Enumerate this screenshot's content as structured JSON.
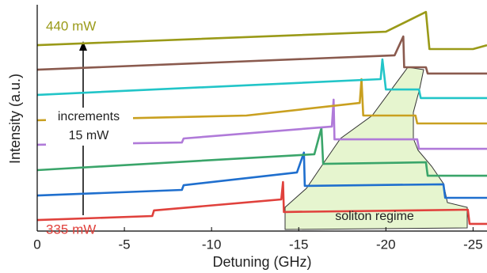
{
  "chart_data": {
    "type": "line",
    "xlabel": "Detuning (GHz)",
    "ylabel": "Intensity (a.u.)",
    "xlim": [
      0,
      -25.8
    ],
    "xticks": [
      0,
      -5,
      -10,
      -15,
      -20,
      -25
    ],
    "ylim": [
      0,
      10
    ],
    "annotations": {
      "top_power": "440 mW",
      "bottom_power": "335 mW",
      "increments": "increments",
      "step": "15 mW",
      "region": "soliton regime"
    },
    "series": [
      {
        "color": "#e0413c",
        "x": [
          0,
          -6.6,
          -6.7,
          -14,
          -14.1,
          -14.15,
          -24.7,
          -24.8,
          -25.8
        ],
        "values": [
          0.49,
          0.67,
          0.92,
          1.41,
          2.18,
          0.85,
          0.95,
          0.32,
          0.32
        ]
      },
      {
        "color": "#1f6fce",
        "x": [
          0,
          -8.3,
          -8.4,
          -14.9,
          -15.3,
          -15.35,
          -23.3,
          -23.4,
          -25.8
        ],
        "values": [
          1.58,
          1.83,
          2.04,
          2.61,
          3.49,
          2.01,
          2.08,
          1.48,
          1.48
        ]
      },
      {
        "color": "#3aa56a",
        "x": [
          0,
          -15.9,
          -16.3,
          -16.4,
          -22.3,
          -22.4,
          -25.8
        ],
        "values": [
          2.71,
          3.42,
          4.58,
          2.99,
          3.06,
          2.46,
          2.46
        ]
      },
      {
        "color": "#b07ad9",
        "x": [
          0,
          -8.3,
          -8.4,
          -16.9,
          -17,
          -17.05,
          -21.8,
          -21.9,
          -25.8
        ],
        "values": [
          3.84,
          3.94,
          4.12,
          4.65,
          5.85,
          4.08,
          4.08,
          3.66,
          3.66
        ]
      },
      {
        "color": "#c9a020",
        "x": [
          0,
          -12,
          -18.5,
          -18.6,
          -18.7,
          -21.7,
          -21.8,
          -25.8
        ],
        "values": [
          4.93,
          5.14,
          5.7,
          6.76,
          5.14,
          5.14,
          4.79,
          4.79
        ]
      },
      {
        "color": "#22c5c8",
        "x": [
          0,
          -19.7,
          -19.8,
          -20,
          -21.9,
          -22,
          -25.8
        ],
        "values": [
          6.06,
          6.76,
          7.64,
          6.3,
          6.3,
          5.92,
          5.92
        ]
      },
      {
        "color": "#8a5a4e",
        "x": [
          0,
          -20.5,
          -21,
          -21.05,
          -22.3,
          -22.4,
          -25.8
        ],
        "values": [
          7.18,
          7.82,
          8.66,
          7.29,
          7.29,
          7.01,
          7.01
        ]
      },
      {
        "color": "#9a9a18",
        "x": [
          0,
          -20,
          -22.3,
          -22.5,
          -25,
          -25.8
        ],
        "values": [
          8.27,
          8.87,
          9.75,
          8.1,
          8.1,
          8.27
        ]
      }
    ]
  }
}
